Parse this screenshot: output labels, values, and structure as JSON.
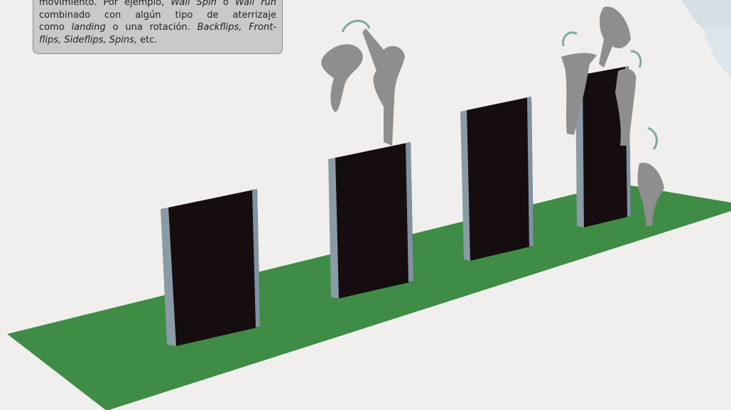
{
  "caption": {
    "lines": [
      [
        {
          "text": "movimiento. Por ejemplo, ",
          "italic": false
        },
        {
          "text": "Wall Spin",
          "italic": true
        },
        {
          "text": " o ",
          "italic": false
        },
        {
          "text": "Wall run",
          "italic": true
        }
      ],
      [
        {
          "text": "combinado con algún tipo de aterrizaje",
          "italic": false
        }
      ],
      [
        {
          "text": "como ",
          "italic": false
        },
        {
          "text": "landing",
          "italic": true
        },
        {
          "text": " o una rotación. ",
          "italic": false
        },
        {
          "text": "Backflips, Front-",
          "italic": true
        }
      ],
      [
        {
          "text": "flips, Sideflips, Spins,",
          "italic": true
        },
        {
          "text": " etc.",
          "italic": false
        }
      ]
    ]
  }
}
